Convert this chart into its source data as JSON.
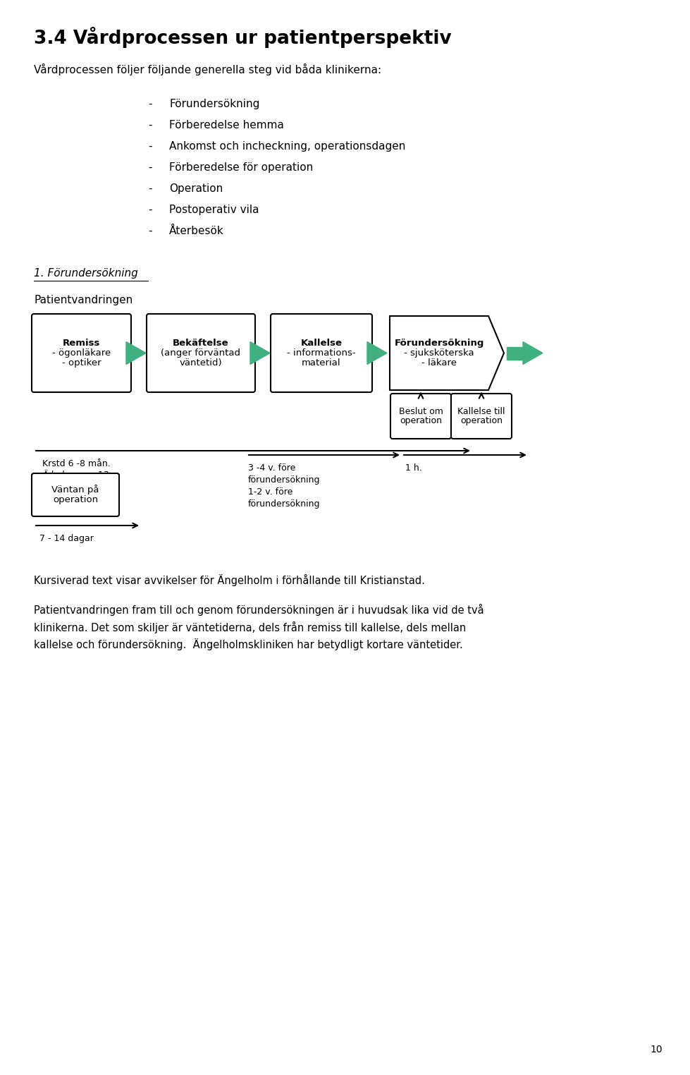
{
  "title": "3.4 Vårdprocessen ur patientperspektiv",
  "subtitle": "Vårdprocessen följer följande generella steg vid båda klinikerna:",
  "bullet_items": [
    "Förundersökning",
    "Förberedelse hemma",
    "Ankomst och incheckning, operationsdagen",
    "Förberedelse för operation",
    "Operation",
    "Postoperativ vila",
    "Återbesök"
  ],
  "section_label": "1. Förundersökning",
  "patientvandringen_label": "Patientvandringen",
  "box0_lines": [
    "Remiss",
    "- ögonläkare",
    "- optiker"
  ],
  "box1_lines": [
    "Bekäftelse",
    "(anger förväntad",
    "väntetid)"
  ],
  "box2_lines": [
    "Kallelse",
    "- informations-",
    "material"
  ],
  "box3_lines": [
    "Förundersökning",
    "- sjuksköterska",
    "- läkare"
  ],
  "sub0_lines": [
    "Beslut om",
    "operation"
  ],
  "sub1_lines": [
    "Kallelse till",
    "operation"
  ],
  "vantan_lines": [
    "Väntan på",
    "operation"
  ],
  "timeline_label1a": "Krstd 6 -8 mån.",
  "timeline_label1b": "Ä-holm max 13 v.",
  "timeline_label2": "3 -4 v. före\nförundersökning\n1-2 v. före\nförundersökning",
  "timeline_label3": "1 h.",
  "vantan_time": "7 - 14 dagar",
  "bottom_text1": "Kursiverad text visar avvikelser för Ängelholm i förhållande till Kristianstad.",
  "bottom_text2": "Patientvandringen fram till och genom förundersökningen är i huvudsak lika vid de två\nklinikerna. Det som skiljer är väntetiderna, dels från remiss till kallelse, dels mellan\nkallelse och förundersökning.  Ängelholmskliniken har betydligt kortare väntetider.",
  "page_number": "10",
  "teal_color": "#40B080",
  "bg_color": "#FFFFFF",
  "text_color": "#000000",
  "box_edge": "#000000"
}
